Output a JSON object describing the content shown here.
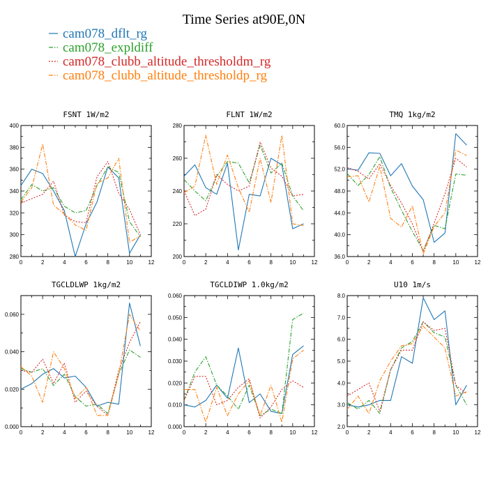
{
  "figure": {
    "title": "Time Series at90E,0N",
    "legend": [
      {
        "label": "cam078_dflt_rg",
        "color": "#1f77b4",
        "dash": "solid"
      },
      {
        "label": "cam078_expldiff",
        "color": "#2ca02c",
        "dash": "dashdot"
      },
      {
        "label": "cam078_clubb_altitude_thresholdm_rg",
        "color": "#d62728",
        "dash": "dot"
      },
      {
        "label": "cam078_clubb_altitude_thresholdp_rg",
        "color": "#ff7f0e",
        "dash": "dashdot"
      }
    ]
  },
  "chart_data": [
    {
      "type": "line",
      "title": "FSNT    1W/m2",
      "x": [
        0,
        1,
        2,
        3,
        4,
        5,
        6,
        7,
        8,
        9,
        10,
        11
      ],
      "xlim": [
        0,
        12
      ],
      "xticks": [
        0,
        2,
        4,
        6,
        8,
        10,
        12
      ],
      "ylim": [
        280,
        400
      ],
      "yticks": [
        280,
        300,
        320,
        340,
        360,
        380,
        400
      ],
      "ytick_labels": [
        "280",
        "300",
        "320",
        "340",
        "360",
        "380",
        "400"
      ],
      "series": [
        {
          "name": "cam078_dflt_rg",
          "values": [
            345,
            360,
            356,
            340,
            322,
            280,
            310,
            330,
            362,
            352,
            283,
            300
          ]
        },
        {
          "name": "cam078_expldiff",
          "values": [
            332,
            346,
            340,
            343,
            326,
            320,
            322,
            345,
            362,
            357,
            312,
            298
          ]
        },
        {
          "name": "cam078_clubb_altitude_thresholdm_rg",
          "values": [
            329,
            333,
            337,
            349,
            318,
            312,
            311,
            353,
            367,
            338,
            323,
            300
          ]
        },
        {
          "name": "cam078_clubb_altitude_thresholdp_rg",
          "values": [
            330,
            343,
            383,
            327,
            319,
            309,
            304,
            347,
            352,
            370,
            293,
            299
          ]
        }
      ]
    },
    {
      "type": "line",
      "title": "FLNT    1W/m2",
      "x": [
        0,
        1,
        2,
        3,
        4,
        5,
        6,
        7,
        8,
        9,
        10,
        11
      ],
      "xlim": [
        0,
        12
      ],
      "xticks": [
        0,
        2,
        4,
        6,
        8,
        10,
        12
      ],
      "ylim": [
        200,
        280
      ],
      "yticks": [
        200,
        220,
        240,
        260,
        280
      ],
      "ytick_labels": [
        "200",
        "220",
        "240",
        "260",
        "280"
      ],
      "series": [
        {
          "name": "cam078_dflt_rg",
          "values": [
            249,
            256,
            242,
            238,
            257,
            204,
            238,
            237,
            260,
            256,
            217,
            220
          ]
        },
        {
          "name": "cam078_expldiff",
          "values": [
            247,
            240,
            234,
            249,
            258,
            257,
            245,
            268,
            251,
            257,
            237,
            228
          ]
        },
        {
          "name": "cam078_clubb_altitude_thresholdm_rg",
          "values": [
            240,
            225,
            229,
            250,
            244,
            240,
            243,
            270,
            254,
            249,
            237,
            238
          ]
        },
        {
          "name": "cam078_clubb_altitude_thresholdp_rg",
          "values": [
            239,
            243,
            274,
            244,
            262,
            242,
            227,
            260,
            233,
            274,
            220,
            219
          ]
        }
      ]
    },
    {
      "type": "line",
      "title": "TMQ    1kg/m2",
      "x": [
        0,
        1,
        2,
        3,
        4,
        5,
        6,
        7,
        8,
        9,
        10,
        11
      ],
      "xlim": [
        0,
        12
      ],
      "xticks": [
        0,
        2,
        4,
        6,
        8,
        10,
        12
      ],
      "ylim": [
        36,
        60
      ],
      "yticks": [
        36,
        40,
        44,
        48,
        52,
        56,
        60
      ],
      "ytick_labels": [
        "36.0",
        "40.0",
        "44.0",
        "48.0",
        "52.0",
        "56.0",
        "60.0"
      ],
      "series": [
        {
          "name": "cam078_dflt_rg",
          "values": [
            52.1,
            51.8,
            55.0,
            54.9,
            50.8,
            53.0,
            48.9,
            46.4,
            38.6,
            40.3,
            58.5,
            56.4
          ]
        },
        {
          "name": "cam078_expldiff",
          "values": [
            51.2,
            49.0,
            51.0,
            54.3,
            48.6,
            44.5,
            40.6,
            37.1,
            41.7,
            41.1,
            51.1,
            50.9
          ]
        },
        {
          "name": "cam078_clubb_altitude_thresholdm_rg",
          "values": [
            52.3,
            51.6,
            50.2,
            53.0,
            49.0,
            45.8,
            42.0,
            36.9,
            42.1,
            47.5,
            54.0,
            52.4
          ]
        },
        {
          "name": "cam078_clubb_altitude_thresholdp_rg",
          "values": [
            50.6,
            50.8,
            46.0,
            52.5,
            43.0,
            41.4,
            45.3,
            36.5,
            41.5,
            44.0,
            55.5,
            54.5
          ]
        }
      ]
    },
    {
      "type": "line",
      "title": "TGCLDLWP    1kg/m2",
      "x": [
        0,
        1,
        2,
        3,
        4,
        5,
        6,
        7,
        8,
        9,
        10,
        11
      ],
      "xlim": [
        0,
        12
      ],
      "xticks": [
        0,
        2,
        4,
        6,
        8,
        10,
        12
      ],
      "ylim": [
        0,
        0.07
      ],
      "yticks": [
        0,
        0.02,
        0.04,
        0.06
      ],
      "ytick_labels": [
        "0.000",
        "0.020",
        "0.040",
        "0.060"
      ],
      "series": [
        {
          "name": "cam078_dflt_rg",
          "values": [
            0.02,
            0.023,
            0.028,
            0.031,
            0.026,
            0.027,
            0.021,
            0.011,
            0.013,
            0.012,
            0.066,
            0.043
          ]
        },
        {
          "name": "cam078_expldiff",
          "values": [
            0.031,
            0.029,
            0.031,
            0.022,
            0.028,
            0.016,
            0.011,
            0.012,
            0.007,
            0.028,
            0.041,
            0.037
          ]
        },
        {
          "name": "cam078_clubb_altitude_thresholdm_rg",
          "values": [
            0.03,
            0.029,
            0.036,
            0.023,
            0.034,
            0.013,
            0.019,
            0.011,
            0.006,
            0.03,
            0.045,
            0.056
          ]
        },
        {
          "name": "cam078_clubb_altitude_thresholdp_rg",
          "values": [
            0.032,
            0.027,
            0.013,
            0.04,
            0.031,
            0.015,
            0.021,
            0.006,
            0.006,
            0.028,
            0.06,
            0.051
          ]
        }
      ]
    },
    {
      "type": "line",
      "title": "TGCLDIWP    1.0kg/m2",
      "x": [
        0,
        1,
        2,
        3,
        4,
        5,
        6,
        7,
        8,
        9,
        10,
        11
      ],
      "xlim": [
        0,
        12
      ],
      "xticks": [
        0,
        2,
        4,
        6,
        8,
        10,
        12
      ],
      "ylim": [
        0,
        0.06
      ],
      "yticks": [
        0,
        0.01,
        0.02,
        0.03,
        0.04,
        0.05,
        0.06
      ],
      "ytick_labels": [
        "0.000",
        "0.010",
        "0.020",
        "0.030",
        "0.040",
        "0.050",
        "0.060"
      ],
      "series": [
        {
          "name": "cam078_dflt_rg",
          "values": [
            0.01,
            0.009,
            0.012,
            0.019,
            0.013,
            0.036,
            0.011,
            0.015,
            0.007,
            0.006,
            0.033,
            0.037
          ]
        },
        {
          "name": "cam078_expldiff",
          "values": [
            0.012,
            0.025,
            0.032,
            0.019,
            0.014,
            0.008,
            0.019,
            0.005,
            0.008,
            0.006,
            0.049,
            0.052
          ]
        },
        {
          "name": "cam078_clubb_altitude_thresholdm_rg",
          "values": [
            0.012,
            0.023,
            0.023,
            0.01,
            0.012,
            0.018,
            0.022,
            0.004,
            0.009,
            0.017,
            0.021,
            0.018
          ]
        },
        {
          "name": "cam078_clubb_altitude_thresholdp_rg",
          "values": [
            0.017,
            0.017,
            0.002,
            0.018,
            0.005,
            0.015,
            0.021,
            0.005,
            0.019,
            0.002,
            0.031,
            0.035
          ]
        }
      ]
    },
    {
      "type": "line",
      "title": "U10    1m/s",
      "x": [
        0,
        1,
        2,
        3,
        4,
        5,
        6,
        7,
        8,
        9,
        10,
        11
      ],
      "xlim": [
        0,
        12
      ],
      "xticks": [
        0,
        2,
        4,
        6,
        8,
        10,
        12
      ],
      "ylim": [
        2,
        8
      ],
      "yticks": [
        2,
        3,
        4,
        5,
        6,
        7,
        8
      ],
      "ytick_labels": [
        "2.0",
        "3.0",
        "4.0",
        "5.0",
        "6.0",
        "7.0",
        "8.0"
      ],
      "series": [
        {
          "name": "cam078_dflt_rg",
          "values": [
            3.0,
            2.9,
            3.0,
            3.2,
            3.2,
            5.2,
            4.9,
            7.9,
            6.9,
            7.3,
            3.0,
            3.9
          ]
        },
        {
          "name": "cam078_expldiff",
          "values": [
            3.1,
            2.8,
            3.2,
            2.6,
            4.6,
            5.6,
            5.9,
            6.8,
            6.3,
            6.1,
            3.9,
            3.0
          ]
        },
        {
          "name": "cam078_clubb_altitude_thresholdm_rg",
          "values": [
            3.4,
            3.7,
            4.0,
            2.7,
            4.6,
            5.5,
            5.5,
            6.8,
            6.4,
            6.5,
            3.9,
            3.5
          ]
        },
        {
          "name": "cam078_clubb_altitude_thresholdp_rg",
          "values": [
            2.8,
            3.4,
            2.6,
            4.1,
            5.0,
            5.7,
            5.8,
            6.6,
            6.1,
            5.6,
            3.4,
            3.6
          ]
        }
      ]
    }
  ]
}
